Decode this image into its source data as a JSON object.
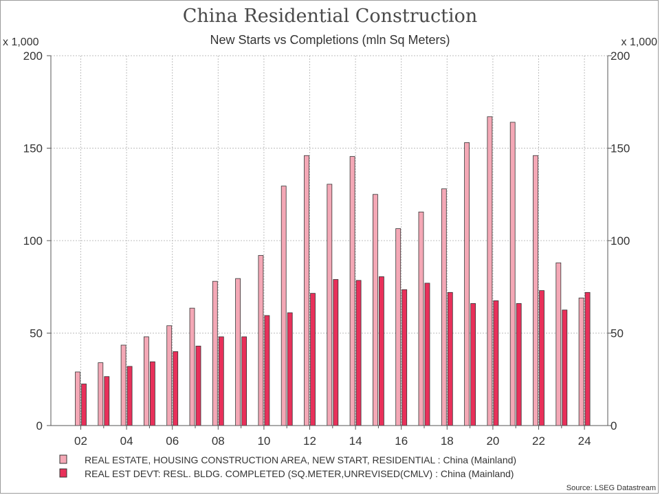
{
  "chart_data": {
    "type": "bar",
    "title": "China Residential Construction",
    "subtitle": "New Starts vs Completions (mln Sq Meters)",
    "y_unit_left": "x 1,000",
    "y_unit_right": "x 1,000",
    "ylim": [
      0,
      200
    ],
    "yticks": [
      0,
      50,
      100,
      150,
      200
    ],
    "grid": true,
    "x": [
      2002,
      2003,
      2004,
      2005,
      2006,
      2007,
      2008,
      2009,
      2010,
      2011,
      2012,
      2013,
      2014,
      2015,
      2016,
      2017,
      2018,
      2019,
      2020,
      2021,
      2022,
      2023,
      2024
    ],
    "xtick_labels": [
      "02",
      "04",
      "06",
      "08",
      "10",
      "12",
      "14",
      "16",
      "18",
      "20",
      "22",
      "24"
    ],
    "series": [
      {
        "name": "REAL ESTATE, HOUSING CONSTRUCTION AREA, NEW START, RESIDENTIAL : China (Mainland)",
        "color": "#f4a8b6",
        "values": [
          29,
          34,
          43.5,
          48,
          54,
          63.5,
          78,
          79.5,
          92,
          129.5,
          146,
          130.5,
          145.5,
          125,
          106.5,
          115.5,
          128,
          153,
          167,
          164,
          146,
          88,
          69
        ]
      },
      {
        "name": "REAL EST DEVT: RESL. BLDG. COMPLETED (SQ.METER,UNREVISED(CMLV) : China (Mainland)",
        "color": "#e8305a",
        "values": [
          22.5,
          26.5,
          32,
          34.5,
          40,
          43,
          48,
          48,
          59.5,
          61,
          71.5,
          79,
          78.5,
          80.5,
          73.5,
          77,
          72,
          66,
          67.5,
          66,
          73,
          62.5,
          72
        ]
      }
    ],
    "legend_position": "bottom",
    "source": "Source: LSEG Datastream"
  }
}
